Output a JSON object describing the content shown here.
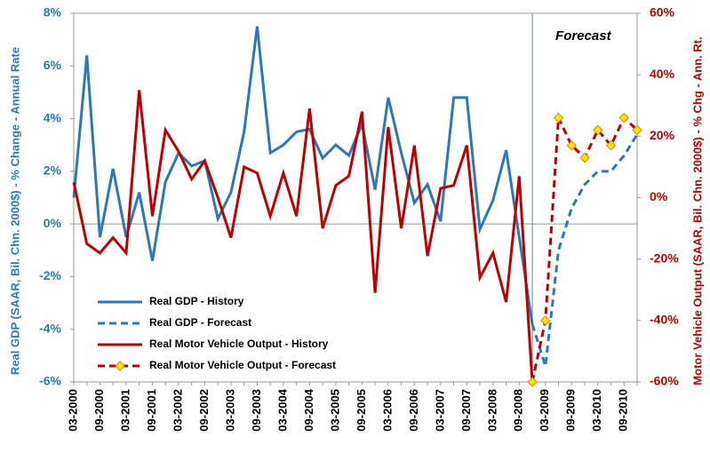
{
  "chart_data": {
    "type": "line",
    "categories": [
      "03-2000",
      null,
      "09-2000",
      null,
      "03-2001",
      null,
      "09-2001",
      null,
      "03-2002",
      null,
      "09-2002",
      null,
      "03-2003",
      null,
      "09-2003",
      null,
      "03-2004",
      null,
      "09-2004",
      null,
      "03-2005",
      null,
      "09-2005",
      null,
      "03-2006",
      null,
      "09-2006",
      null,
      "03-2007",
      null,
      "09-2007",
      null,
      "03-2008",
      null,
      "09-2008",
      null,
      "03-2009",
      null,
      "09-2009",
      null,
      "03-2010",
      null,
      "09-2010",
      null
    ],
    "series": [
      {
        "name": "Real GDP - History",
        "color": "#2a7ab8",
        "style": "solid",
        "values": [
          1.0,
          6.4,
          -0.5,
          2.1,
          -0.5,
          1.2,
          -1.4,
          1.6,
          2.7,
          2.2,
          2.4,
          0.2,
          1.2,
          3.5,
          7.5,
          2.7,
          3.0,
          3.5,
          3.6,
          2.5,
          3.0,
          2.6,
          3.8,
          1.3,
          4.8,
          2.7,
          0.8,
          1.5,
          0.1,
          4.8,
          4.8,
          -0.2,
          0.9,
          2.8,
          -0.5,
          -3.8,
          null,
          null,
          null,
          null,
          null,
          null,
          null,
          null
        ]
      },
      {
        "name": "Real GDP - Forecast",
        "color": "#2a7ab8",
        "style": "dashed",
        "values": [
          null,
          null,
          null,
          null,
          null,
          null,
          null,
          null,
          null,
          null,
          null,
          null,
          null,
          null,
          null,
          null,
          null,
          null,
          null,
          null,
          null,
          null,
          null,
          null,
          null,
          null,
          null,
          null,
          null,
          null,
          null,
          null,
          null,
          null,
          null,
          -3.8,
          -5.4,
          -1.0,
          0.6,
          1.5,
          2.0,
          2.0,
          2.6,
          3.4
        ]
      },
      {
        "name": "Real Motor Vehicle Output - History",
        "color": "#c00000",
        "style": "solid",
        "axis": "y2",
        "values": [
          5,
          -15,
          -18,
          -13,
          -18,
          35,
          -6,
          22,
          15,
          6,
          12,
          0,
          -13,
          10,
          8,
          -6,
          8,
          -6,
          29,
          -10,
          4,
          7,
          28,
          -31,
          23,
          -10,
          17,
          -19,
          3,
          4,
          17,
          -26,
          -18,
          -34,
          7,
          -60,
          null,
          null,
          null,
          null,
          null,
          null,
          null,
          null
        ]
      },
      {
        "name": "Real Motor Vehicle Output - Forecast",
        "color": "#c00000",
        "style": "dashed",
        "marker": "diamond",
        "marker_color": "#ffe600",
        "axis": "y2",
        "values": [
          null,
          null,
          null,
          null,
          null,
          null,
          null,
          null,
          null,
          null,
          null,
          null,
          null,
          null,
          null,
          null,
          null,
          null,
          null,
          null,
          null,
          null,
          null,
          null,
          null,
          null,
          null,
          null,
          null,
          null,
          null,
          null,
          null,
          null,
          null,
          -60,
          -40,
          26,
          17,
          13,
          22,
          17,
          26,
          22
        ]
      }
    ],
    "ylabel": "Real GDP (SAAR, Bil. Chn. 2000$) - % Change - Annual Rate",
    "y2label": "Motor Vehicle Output (SAAR, Bil. Chn. 2000$) - % Chg - Ann. Rt.",
    "annotation": "Forecast",
    "ylim": [
      -6,
      8
    ],
    "yticks": [
      {
        "value": -6,
        "label": "-6%"
      },
      {
        "value": -4,
        "label": "-4%"
      },
      {
        "value": -2,
        "label": "-2%"
      },
      {
        "value": 0,
        "label": "0%"
      },
      {
        "value": 2,
        "label": "2%"
      },
      {
        "value": 4,
        "label": "4%"
      },
      {
        "value": 6,
        "label": "6%"
      },
      {
        "value": 8,
        "label": "8%"
      }
    ],
    "y2lim": [
      -60,
      60
    ],
    "y2ticks": [
      {
        "value": -60,
        "label": "-60%"
      },
      {
        "value": -40,
        "label": "-40%"
      },
      {
        "value": -20,
        "label": "-20%"
      },
      {
        "value": 0,
        "label": "0%"
      },
      {
        "value": 20,
        "label": "20%"
      },
      {
        "value": 40,
        "label": "40%"
      },
      {
        "value": 60,
        "label": "60%"
      }
    ],
    "legend": "lower left"
  }
}
